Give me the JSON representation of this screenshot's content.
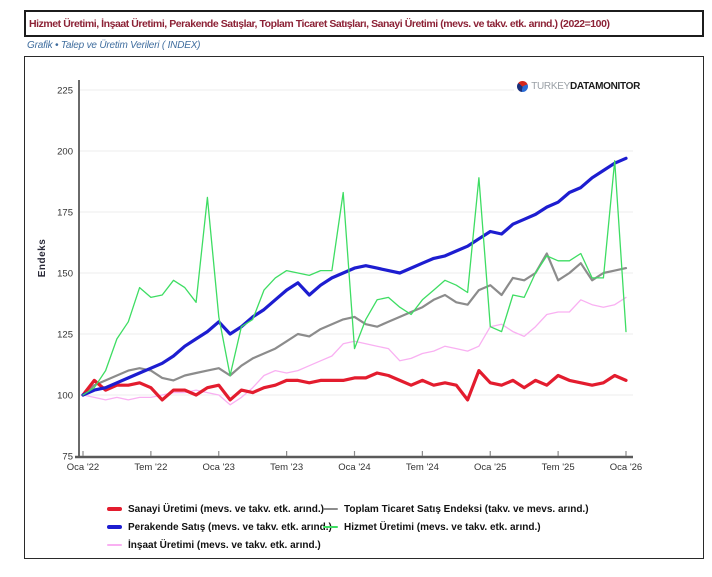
{
  "logo": {
    "turkey": "TURKEY",
    "data": "DATA",
    "monitor": "MONITOR"
  },
  "chart_data": {
    "type": "line",
    "title": "Hizmet Üretimi, İnşaat Üretimi, Perakende Satışlar, Toplam Ticaret Satışları, Sanayi Üretimi (mevs. ve takv. etk. arınd.) (2022=100)",
    "subtitle": "Grafik • Talep ve Üretim Verileri ( INDEX)",
    "ylabel": "Endeks",
    "xlabel": "",
    "ylim": [
      75,
      225
    ],
    "yticks": [
      75,
      100,
      125,
      150,
      175,
      200,
      225
    ],
    "grid": true,
    "legend_position": "bottom",
    "x": [
      "2022-01",
      "2022-02",
      "2022-03",
      "2022-04",
      "2022-05",
      "2022-06",
      "2022-07",
      "2022-08",
      "2022-09",
      "2022-10",
      "2022-11",
      "2022-12",
      "2023-01",
      "2023-02",
      "2023-03",
      "2023-04",
      "2023-05",
      "2023-06",
      "2023-07",
      "2023-08",
      "2023-09",
      "2023-10",
      "2023-11",
      "2023-12",
      "2024-01",
      "2024-02",
      "2024-03",
      "2024-04",
      "2024-05",
      "2024-06",
      "2024-07",
      "2024-08",
      "2024-09",
      "2024-10",
      "2024-11",
      "2024-12",
      "2025-01",
      "2025-02",
      "2025-03",
      "2025-04",
      "2025-05",
      "2025-06",
      "2025-07",
      "2025-08",
      "2025-09",
      "2025-10",
      "2025-11",
      "2025-12",
      "2026-01"
    ],
    "x_tick_labels": [
      "Oca '22",
      "Tem '22",
      "Oca '23",
      "Tem '23",
      "Oca '24",
      "Tem '24",
      "Oca '25",
      "Tem '25",
      "Oca '26"
    ],
    "x_tick_positions": [
      0,
      6,
      12,
      18,
      24,
      30,
      36,
      42,
      48
    ],
    "series": [
      {
        "name": "Sanayi Üretimi (mevs. ve takv. etk. arınd.)",
        "color": "#e31c2e",
        "values": [
          100,
          106,
          102,
          104,
          104,
          105,
          103,
          98,
          102,
          102,
          100,
          103,
          104,
          98,
          102,
          101,
          103,
          104,
          106,
          106,
          105,
          106,
          106,
          106,
          107,
          107,
          109,
          108,
          106,
          104,
          106,
          104,
          105,
          104,
          98,
          110,
          105,
          104,
          106,
          103,
          106,
          104,
          108,
          106,
          105,
          104,
          105,
          108,
          106
        ]
      },
      {
        "name": "Perakende Satış (mevs. ve takv. etk. arınd.)",
        "color": "#1d1dd0",
        "values": [
          100,
          102,
          103,
          105,
          107,
          109,
          111,
          113,
          116,
          120,
          123,
          126,
          130,
          125,
          128,
          132,
          135,
          139,
          143,
          146,
          141,
          145,
          148,
          150,
          152,
          153,
          152,
          151,
          150,
          152,
          154,
          156,
          157,
          159,
          161,
          164,
          167,
          166,
          170,
          172,
          174,
          177,
          179,
          183,
          185,
          189,
          192,
          195,
          197
        ]
      },
      {
        "name": "İnşaat Üretimi (mevs. ve takv. etk. arınd.)",
        "color": "#f9b0f2",
        "values": [
          100,
          99,
          98,
          99,
          98,
          99,
          99,
          100,
          101,
          101,
          102,
          101,
          100,
          96,
          99,
          103,
          108,
          110,
          109,
          110,
          112,
          114,
          116,
          121,
          122,
          121,
          120,
          119,
          114,
          115,
          117,
          118,
          120,
          119,
          118,
          120,
          128,
          129,
          126,
          124,
          128,
          133,
          134,
          134,
          139,
          137,
          136,
          137,
          140
        ]
      },
      {
        "name": "Toplam Ticaret Satış Endeksi (takv. ve mevs. arınd.)",
        "color": "#8c8c8c",
        "values": [
          100,
          104,
          106,
          108,
          110,
          111,
          110,
          107,
          106,
          108,
          109,
          110,
          111,
          108,
          112,
          115,
          117,
          119,
          122,
          125,
          124,
          127,
          129,
          131,
          132,
          129,
          128,
          130,
          132,
          134,
          136,
          139,
          141,
          138,
          137,
          143,
          145,
          141,
          148,
          147,
          150,
          158,
          147,
          150,
          154,
          147,
          150,
          151,
          152
        ]
      },
      {
        "name": "Hizmet Üretimi (mevs. ve takv. etk. arınd.)",
        "color": "#3edd63",
        "values": [
          100,
          103,
          110,
          123,
          130,
          144,
          140,
          141,
          147,
          144,
          138,
          181,
          132,
          108,
          128,
          131,
          143,
          148,
          151,
          150,
          149,
          151,
          151,
          183,
          119,
          131,
          139,
          140,
          136,
          133,
          139,
          143,
          147,
          145,
          142,
          189,
          128,
          126,
          141,
          140,
          150,
          157,
          155,
          155,
          158,
          148,
          148,
          196,
          126
        ]
      }
    ]
  }
}
